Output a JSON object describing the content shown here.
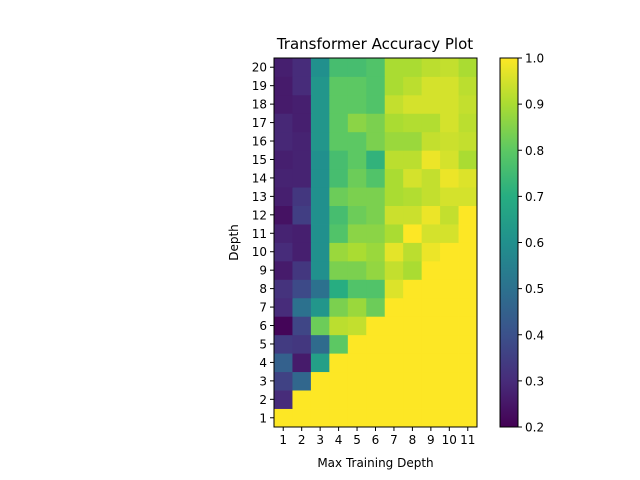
{
  "chart_data": {
    "type": "heatmap",
    "title": "Transformer Accuracy Plot",
    "xlabel": "Max Training Depth",
    "ylabel": "Depth",
    "x": [
      1,
      2,
      3,
      4,
      5,
      6,
      7,
      8,
      9,
      10,
      11
    ],
    "y": [
      1,
      2,
      3,
      4,
      5,
      6,
      7,
      8,
      9,
      10,
      11,
      12,
      13,
      14,
      15,
      16,
      17,
      18,
      19,
      20
    ],
    "values": [
      [
        1.0,
        1.0,
        1.0,
        1.0,
        1.0,
        1.0,
        1.0,
        1.0,
        1.0,
        1.0,
        1.0
      ],
      [
        0.3,
        1.0,
        1.0,
        1.0,
        1.0,
        1.0,
        1.0,
        1.0,
        1.0,
        1.0,
        1.0
      ],
      [
        0.36,
        0.47,
        1.0,
        1.0,
        1.0,
        1.0,
        1.0,
        1.0,
        1.0,
        1.0,
        1.0
      ],
      [
        0.45,
        0.26,
        0.65,
        1.0,
        1.0,
        1.0,
        1.0,
        1.0,
        1.0,
        1.0,
        1.0
      ],
      [
        0.34,
        0.33,
        0.48,
        0.8,
        1.0,
        1.0,
        1.0,
        1.0,
        1.0,
        1.0,
        1.0
      ],
      [
        0.21,
        0.37,
        0.82,
        0.92,
        0.93,
        1.0,
        1.0,
        1.0,
        1.0,
        1.0,
        1.0
      ],
      [
        0.3,
        0.5,
        0.62,
        0.84,
        0.88,
        0.82,
        1.0,
        1.0,
        1.0,
        1.0,
        1.0
      ],
      [
        0.32,
        0.38,
        0.5,
        0.7,
        0.78,
        0.78,
        0.96,
        1.0,
        1.0,
        1.0,
        1.0
      ],
      [
        0.26,
        0.33,
        0.6,
        0.84,
        0.84,
        0.87,
        0.93,
        0.9,
        1.0,
        1.0,
        1.0
      ],
      [
        0.3,
        0.27,
        0.6,
        0.88,
        0.9,
        0.88,
        0.97,
        0.92,
        0.98,
        1.0,
        1.0
      ],
      [
        0.28,
        0.27,
        0.6,
        0.78,
        0.86,
        0.86,
        0.9,
        1.0,
        0.95,
        0.95,
        1.0
      ],
      [
        0.24,
        0.35,
        0.6,
        0.76,
        0.82,
        0.84,
        0.94,
        0.94,
        0.98,
        0.93,
        1.0
      ],
      [
        0.27,
        0.33,
        0.6,
        0.82,
        0.84,
        0.84,
        0.9,
        0.91,
        0.93,
        0.95,
        0.95
      ],
      [
        0.28,
        0.28,
        0.6,
        0.76,
        0.82,
        0.78,
        0.9,
        0.95,
        0.93,
        0.98,
        0.96
      ],
      [
        0.27,
        0.28,
        0.6,
        0.76,
        0.8,
        0.72,
        0.92,
        0.92,
        0.98,
        0.95,
        0.9
      ],
      [
        0.29,
        0.28,
        0.62,
        0.8,
        0.8,
        0.84,
        0.88,
        0.88,
        0.93,
        0.94,
        0.93
      ],
      [
        0.29,
        0.27,
        0.62,
        0.8,
        0.86,
        0.84,
        0.9,
        0.91,
        0.91,
        0.95,
        0.92
      ],
      [
        0.26,
        0.27,
        0.62,
        0.8,
        0.8,
        0.78,
        0.93,
        0.95,
        0.95,
        0.95,
        0.93
      ],
      [
        0.26,
        0.3,
        0.62,
        0.8,
        0.8,
        0.78,
        0.9,
        0.92,
        0.95,
        0.95,
        0.92
      ],
      [
        0.27,
        0.3,
        0.6,
        0.76,
        0.76,
        0.78,
        0.9,
        0.9,
        0.92,
        0.93,
        0.9
      ]
    ],
    "colormap": "viridis",
    "vmin": 0.2,
    "vmax": 1.0,
    "colorbar_ticks": [
      "0.2",
      "0.3",
      "0.4",
      "0.5",
      "0.6",
      "0.7",
      "0.8",
      "0.9",
      "1.0"
    ],
    "grid": false,
    "legend": "none"
  }
}
